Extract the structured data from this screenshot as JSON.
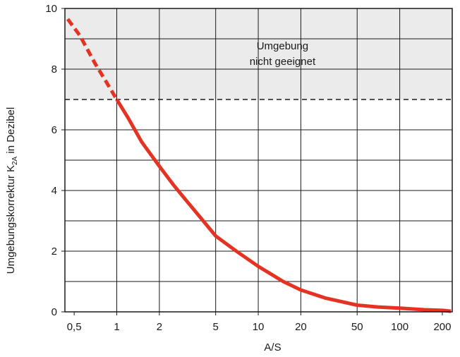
{
  "chart_data": {
    "type": "line",
    "xlabel": "A/S",
    "ylabel_parts": {
      "main": "Umgebungskorrektur K",
      "sub": "2A",
      "tail": " in Dezibel"
    },
    "x_scale": "log",
    "xlim": [
      0.43,
      235
    ],
    "ylim": [
      0,
      10
    ],
    "grid": true,
    "x_ticks": [
      0.5,
      1,
      2,
      5,
      10,
      20,
      50,
      100,
      200
    ],
    "x_tick_labels": [
      "0,5",
      "1",
      "2",
      "5",
      "10",
      "20",
      "50",
      "100",
      "200"
    ],
    "x_grid": [
      1,
      2,
      5,
      10,
      20,
      50,
      100
    ],
    "y_ticks": [
      0,
      2,
      4,
      6,
      8,
      10
    ],
    "y_tick_labels": [
      "0",
      "2",
      "4",
      "6",
      "8",
      "10"
    ],
    "y_grid": [
      1,
      2,
      3,
      4,
      5,
      6,
      8,
      9
    ],
    "threshold": {
      "y": 7,
      "style": "dashed"
    },
    "region": {
      "y_from": 7,
      "y_to": 10,
      "color": "#ebebeb",
      "label_lines": [
        "Umgebung",
        "nicht geeignet"
      ]
    },
    "series_color": "#e53323",
    "series": [
      {
        "style": "dashed",
        "x": [
          0.45,
          0.55,
          0.7,
          0.85,
          1.0
        ],
        "y": [
          9.65,
          9.1,
          8.2,
          7.55,
          7.0
        ]
      },
      {
        "style": "solid",
        "x": [
          1.0,
          1.2,
          1.5,
          2.0,
          2.5,
          3.0,
          4.0,
          5.0,
          7.0,
          10.0,
          15.0,
          20.0,
          30.0,
          50.0,
          70.0,
          100.0,
          150.0,
          200.0,
          230.0
        ],
        "y": [
          7.0,
          6.4,
          5.6,
          4.8,
          4.2,
          3.75,
          3.05,
          2.5,
          2.0,
          1.5,
          1.0,
          0.72,
          0.45,
          0.22,
          0.16,
          0.12,
          0.07,
          0.05,
          0.02
        ]
      }
    ]
  }
}
